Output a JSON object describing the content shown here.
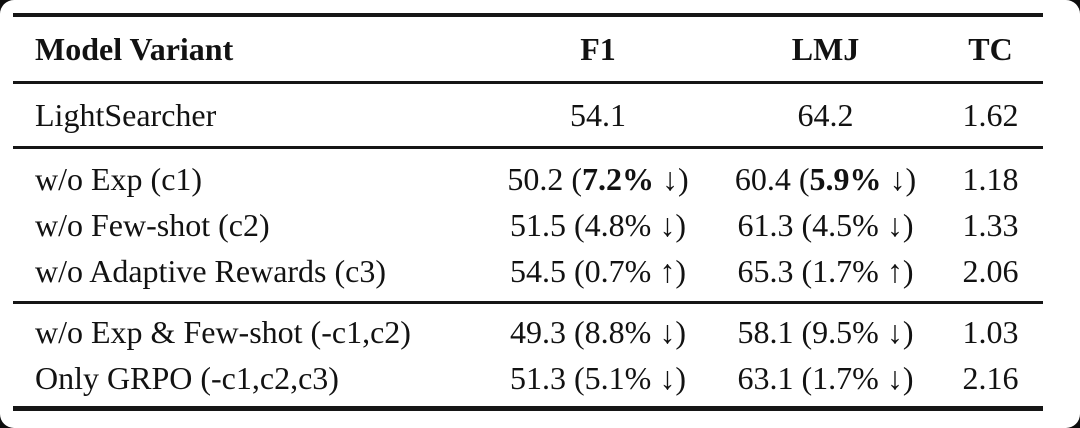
{
  "page": {
    "background_color": "#0d0d0d",
    "card_color": "#ffffff",
    "text_color": "#121212",
    "rule_color": "#161616"
  },
  "table": {
    "headers": {
      "variant": "Model Variant",
      "f1": "F1",
      "lmj": "LMJ",
      "tc": "TC"
    },
    "rows": [
      {
        "variant": "LightSearcher",
        "f1": {
          "pre": "54.1",
          "bold": "",
          "post": ""
        },
        "lmj": {
          "pre": "64.2",
          "bold": "",
          "post": ""
        },
        "tc": "1.62"
      },
      {
        "variant": "w/o Exp (c1)",
        "f1": {
          "pre": "50.2 (",
          "bold": "7.2%",
          "post": " ↓)"
        },
        "lmj": {
          "pre": "60.4 (",
          "bold": "5.9%",
          "post": " ↓)"
        },
        "tc": "1.18"
      },
      {
        "variant": "w/o Few-shot (c2)",
        "f1": {
          "pre": "51.5 (4.8% ↓)",
          "bold": "",
          "post": ""
        },
        "lmj": {
          "pre": "61.3 (4.5% ↓)",
          "bold": "",
          "post": ""
        },
        "tc": "1.33"
      },
      {
        "variant": "w/o Adaptive Rewards (c3)",
        "f1": {
          "pre": "54.5 (0.7% ↑)",
          "bold": "",
          "post": ""
        },
        "lmj": {
          "pre": "65.3 (1.7% ↑)",
          "bold": "",
          "post": ""
        },
        "tc": "2.06"
      },
      {
        "variant": "w/o Exp & Few-shot (-c1,c2)",
        "f1": {
          "pre": "49.3 (8.8% ↓)",
          "bold": "",
          "post": ""
        },
        "lmj": {
          "pre": "58.1 (9.5% ↓)",
          "bold": "",
          "post": ""
        },
        "tc": "1.03"
      },
      {
        "variant": "Only GRPO (-c1,c2,c3)",
        "f1": {
          "pre": "51.3 (5.1% ↓)",
          "bold": "",
          "post": ""
        },
        "lmj": {
          "pre": "63.1 (1.7% ↓)",
          "bold": "",
          "post": ""
        },
        "tc": "2.16"
      }
    ]
  }
}
